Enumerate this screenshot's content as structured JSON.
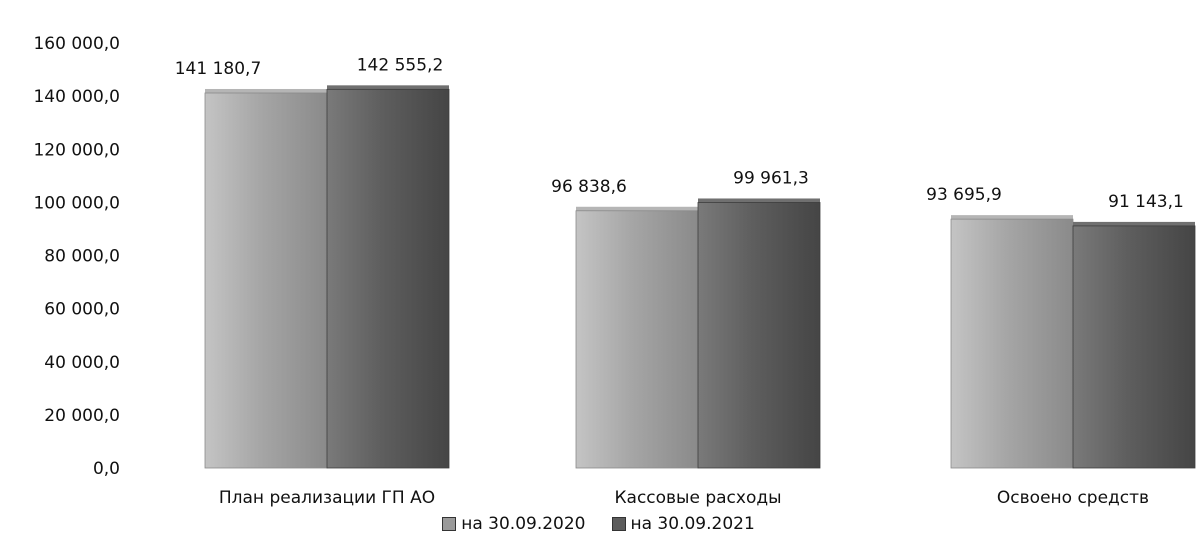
{
  "chart_data": {
    "type": "bar",
    "title": "",
    "xlabel": "",
    "ylabel": "",
    "ylim": [
      0,
      160000
    ],
    "yticks": [
      0,
      20000,
      40000,
      60000,
      80000,
      100000,
      120000,
      140000,
      160000
    ],
    "ytick_labels": [
      "0,0",
      "20 000,0",
      "40 000,0",
      "60 000,0",
      "80 000,0",
      "100 000,0",
      "120 000,0",
      "140 000,0",
      "160 000,0"
    ],
    "categories": [
      "План реализации ГП АО",
      "Кассовые расходы",
      "Освоено средств"
    ],
    "series": [
      {
        "name": "на 30.09.2020",
        "values": [
          141180.7,
          96838.6,
          93695.9
        ],
        "labels": [
          "141 180,7",
          "96 838,6",
          "93 695,9"
        ],
        "color": "#9a9a9a"
      },
      {
        "name": "на 30.09.2021",
        "values": [
          142555.2,
          99961.3,
          91143.1
        ],
        "labels": [
          "142 555,2",
          "99 961,3",
          "91 143,1"
        ],
        "color": "#5c5c5c"
      }
    ],
    "grid": false,
    "legend_position": "bottom"
  }
}
